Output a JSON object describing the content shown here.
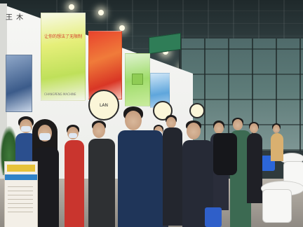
{
  "photo": {
    "subject": "",
    "wall_label": "王 木",
    "poster_caption": "让你的想法了无限制",
    "poster_subtitle": "CHANGPENG MACHINE",
    "round_sign_text": "LAN"
  },
  "colors": {
    "booth_wall": "#f0f1ee",
    "poster_green": "#bfe05a",
    "poster_red": "#e8432d",
    "accent_blue": "#2c66d8",
    "hall_glass": "#5d7b78"
  }
}
